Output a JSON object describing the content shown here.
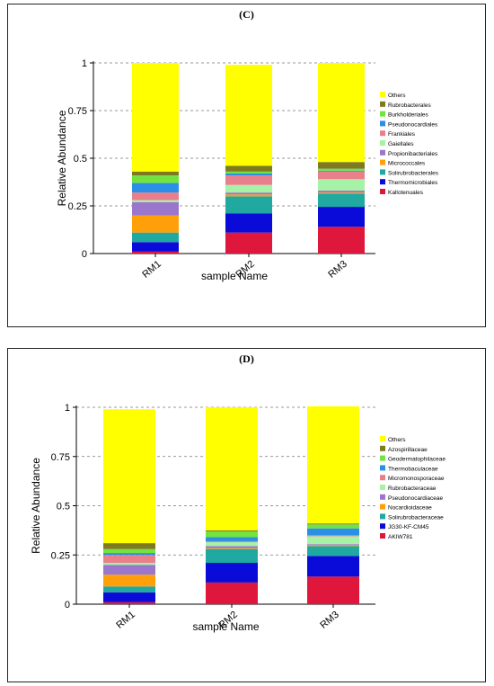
{
  "panels": [
    {
      "label": "(C)",
      "chart_data": {
        "type": "bar",
        "stacked": true,
        "categories": [
          "RM1",
          "RM2",
          "RM3"
        ],
        "xlabel": "sample Name",
        "ylabel": "Relative Abundance",
        "ylim": [
          0,
          1
        ],
        "yticks": [
          "0",
          "0.25",
          "0.5",
          "0.75",
          "1"
        ],
        "grid": "dashed horizontal at ticks",
        "legend_position": "right",
        "series": [
          {
            "name": "Kallotenuales",
            "color": "#e0173c",
            "values": [
              0.01,
              0.11,
              0.14
            ]
          },
          {
            "name": "Thermomicrobiales",
            "color": "#0b0bd9",
            "values": [
              0.05,
              0.1,
              0.105
            ]
          },
          {
            "name": "Solirubrobacterales",
            "color": "#1fa9a0",
            "values": [
              0.05,
              0.09,
              0.07
            ]
          },
          {
            "name": "Micrococcales",
            "color": "#ff9f0a",
            "values": [
              0.09,
              0.01,
              0.005
            ]
          },
          {
            "name": "Propionibacteriales",
            "color": "#9a77cc",
            "values": [
              0.07,
              0.01,
              0.01
            ]
          },
          {
            "name": "Gaiellales",
            "color": "#a6f2a6",
            "values": [
              0.01,
              0.04,
              0.06
            ]
          },
          {
            "name": "Frankiales",
            "color": "#ea7f8c",
            "values": [
              0.04,
              0.05,
              0.04
            ]
          },
          {
            "name": "Pseudonocardiales",
            "color": "#2b8fe8",
            "values": [
              0.05,
              0.01,
              0.005
            ]
          },
          {
            "name": "Burkholderiales",
            "color": "#72e33f",
            "values": [
              0.04,
              0.01,
              0.01
            ]
          },
          {
            "name": "Rubrobacterales",
            "color": "#7d7a1f",
            "values": [
              0.02,
              0.03,
              0.035
            ]
          },
          {
            "name": "Others",
            "color": "#ffff00",
            "values": [
              0.57,
              0.53,
              0.52
            ]
          }
        ]
      }
    },
    {
      "label": "(D)",
      "chart_data": {
        "type": "bar",
        "stacked": true,
        "categories": [
          "RM1",
          "RM2",
          "RM3"
        ],
        "xlabel": "sample Name",
        "ylabel": "Relative Abundance",
        "ylim": [
          0,
          1
        ],
        "yticks": [
          "0",
          "0.25",
          "0.5",
          "0.75",
          "1"
        ],
        "grid": "dashed horizontal at ticks",
        "legend_position": "right",
        "series": [
          {
            "name": "AKIW781",
            "color": "#e0173c",
            "values": [
              0.01,
              0.11,
              0.14
            ]
          },
          {
            "name": "JG30-KF-CM45",
            "color": "#0b0bd9",
            "values": [
              0.05,
              0.1,
              0.105
            ]
          },
          {
            "name": "Solirubrobacteraceae",
            "color": "#1fa9a0",
            "values": [
              0.03,
              0.07,
              0.05
            ]
          },
          {
            "name": "Nocardioidaceae",
            "color": "#ff9f0a",
            "values": [
              0.06,
              0.005,
              0.005
            ]
          },
          {
            "name": "Pseudonocardiaceae",
            "color": "#9a77cc",
            "values": [
              0.05,
              0.01,
              0.005
            ]
          },
          {
            "name": "Rubrobacteraceae",
            "color": "#a6f2a6",
            "values": [
              0.01,
              0.02,
              0.04
            ]
          },
          {
            "name": "Micromonosporaceae",
            "color": "#ea7f8c",
            "values": [
              0.04,
              0.005,
              0.005
            ]
          },
          {
            "name": "Thermobaculaceae",
            "color": "#2b8fe8",
            "values": [
              0.01,
              0.02,
              0.035
            ]
          },
          {
            "name": "Geodermatophilaceae",
            "color": "#72e33f",
            "values": [
              0.02,
              0.03,
              0.02
            ]
          },
          {
            "name": "Azospirillaceae",
            "color": "#7d7a1f",
            "values": [
              0.03,
              0.005,
              0.005
            ]
          },
          {
            "name": "Others",
            "color": "#ffff00",
            "values": [
              0.68,
              0.625,
              0.595
            ]
          }
        ]
      }
    }
  ]
}
